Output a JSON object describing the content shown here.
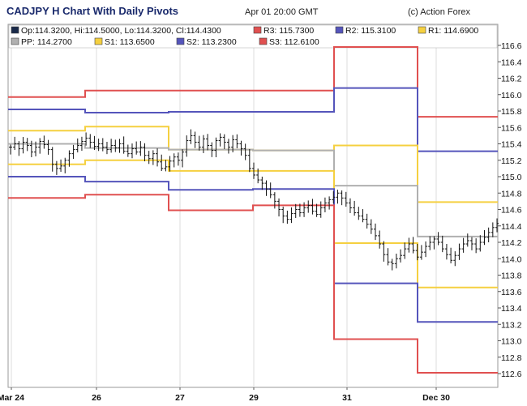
{
  "header": {
    "title": "CADJPY H Chart With Daily Pivots",
    "date": "Apr 01 20:00 GMT",
    "copyright": "(c) Action Forex"
  },
  "legend": [
    {
      "label": "Op:114.3200, Hi:114.5000, Lo:114.3200, Cl:114.4300",
      "color": "#1a2a4a"
    },
    {
      "label": "R3: 115.7300",
      "color": "#e05050"
    },
    {
      "label": "R2: 115.3100",
      "color": "#5555bb"
    },
    {
      "label": "R1: 114.6900",
      "color": "#f5d040"
    },
    {
      "label": "PP: 114.2700",
      "color": "#b0b0b0"
    },
    {
      "label": "S1: 113.6500",
      "color": "#f5d040"
    },
    {
      "label": "S2: 113.2300",
      "color": "#5555bb"
    },
    {
      "label": "S3: 112.6100",
      "color": "#e05050"
    }
  ],
  "chart_data": {
    "type": "line",
    "ylim": [
      112.5,
      116.7
    ],
    "yticks": [
      "116.6",
      "116.4",
      "116.2",
      "116.0",
      "115.8",
      "115.6",
      "115.4",
      "115.2",
      "115.0",
      "114.8",
      "114.6",
      "114.4",
      "114.2",
      "114.0",
      "113.8",
      "113.6",
      "113.4",
      "113.2",
      "113.0",
      "112.8",
      "112.6"
    ],
    "xtick_labels": [
      "Mar 24",
      "26",
      "27",
      "29",
      "31",
      "Dec 30"
    ],
    "series": [
      {
        "name": "R3",
        "color": "#e05050",
        "values": [
          115.97,
          116.05,
          116.05,
          116.05,
          116.58,
          115.73
        ]
      },
      {
        "name": "R2",
        "color": "#5555bb",
        "values": [
          115.82,
          115.78,
          115.79,
          115.79,
          116.08,
          115.31
        ]
      },
      {
        "name": "R1",
        "color": "#f5d040",
        "values": [
          115.56,
          115.61,
          115.33,
          115.32,
          115.38,
          114.69
        ]
      },
      {
        "name": "PP",
        "color": "#b0b0b0",
        "values": [
          115.4,
          115.35,
          115.33,
          115.32,
          114.89,
          114.27
        ]
      },
      {
        "name": "S1",
        "color": "#f5d040",
        "values": [
          115.15,
          115.2,
          115.07,
          115.07,
          114.19,
          113.65
        ]
      },
      {
        "name": "S2",
        "color": "#5555bb",
        "values": [
          115.0,
          114.94,
          114.84,
          114.85,
          113.7,
          113.23
        ]
      },
      {
        "name": "S3",
        "color": "#e05050",
        "values": [
          114.74,
          114.78,
          114.59,
          114.65,
          113.02,
          112.61
        ]
      }
    ],
    "price_bars": [
      115.36,
      115.4,
      115.34,
      115.42,
      115.38,
      115.3,
      115.36,
      115.43,
      115.39,
      115.33,
      115.15,
      115.1,
      115.13,
      115.2,
      115.28,
      115.33,
      115.38,
      115.43,
      115.47,
      115.42,
      115.37,
      115.4,
      115.36,
      115.33,
      115.38,
      115.35,
      115.4,
      115.31,
      115.28,
      115.34,
      115.3,
      115.36,
      115.26,
      115.22,
      115.28,
      115.18,
      115.1,
      115.12,
      115.19,
      115.24,
      115.2,
      115.3,
      115.44,
      115.5,
      115.42,
      115.36,
      115.46,
      115.38,
      115.32,
      115.44,
      115.48,
      115.42,
      115.36,
      115.45,
      115.4,
      115.34,
      115.26,
      115.1,
      115.02,
      114.96,
      114.92,
      114.85,
      114.78,
      114.7,
      114.6,
      114.52,
      114.48,
      114.55,
      114.6,
      114.56,
      114.62,
      114.65,
      114.58,
      114.54,
      114.62,
      114.68,
      114.72,
      114.75,
      114.8,
      114.74,
      114.68,
      114.62,
      114.56,
      114.52,
      114.48,
      114.42,
      114.36,
      114.28,
      114.18,
      114.05,
      113.96,
      113.94,
      114.0,
      114.04,
      114.12,
      114.18,
      114.1,
      114.02,
      114.08,
      114.15,
      114.2,
      114.24,
      114.2,
      114.12,
      114.05,
      113.98,
      114.04,
      114.12,
      114.18,
      114.22,
      114.18,
      114.12,
      114.2,
      114.26,
      114.32,
      114.38,
      114.43
    ]
  }
}
